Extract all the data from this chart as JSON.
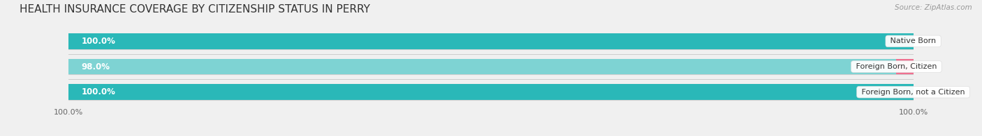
{
  "title": "HEALTH INSURANCE COVERAGE BY CITIZENSHIP STATUS IN PERRY",
  "source": "Source: ZipAtlas.com",
  "categories": [
    "Native Born",
    "Foreign Born, Citizen",
    "Foreign Born, not a Citizen"
  ],
  "with_coverage": [
    100.0,
    98.0,
    100.0
  ],
  "without_coverage": [
    0.0,
    2.0,
    0.0
  ],
  "color_with": "#2ab8b8",
  "color_with_mid": "#7ed3d3",
  "color_without": "#f07090",
  "color_without_light": "#f5a8c0",
  "bg_color": "#f0f0f0",
  "bar_bg_color": "#e8e8e8",
  "bar_border_color": "#d0d0d0",
  "title_fontsize": 11,
  "label_fontsize": 8.5,
  "cat_fontsize": 8,
  "tick_fontsize": 8,
  "source_fontsize": 7.5,
  "total_width": 100.0,
  "x_left_label": "100.0%",
  "x_right_label": "100.0%"
}
